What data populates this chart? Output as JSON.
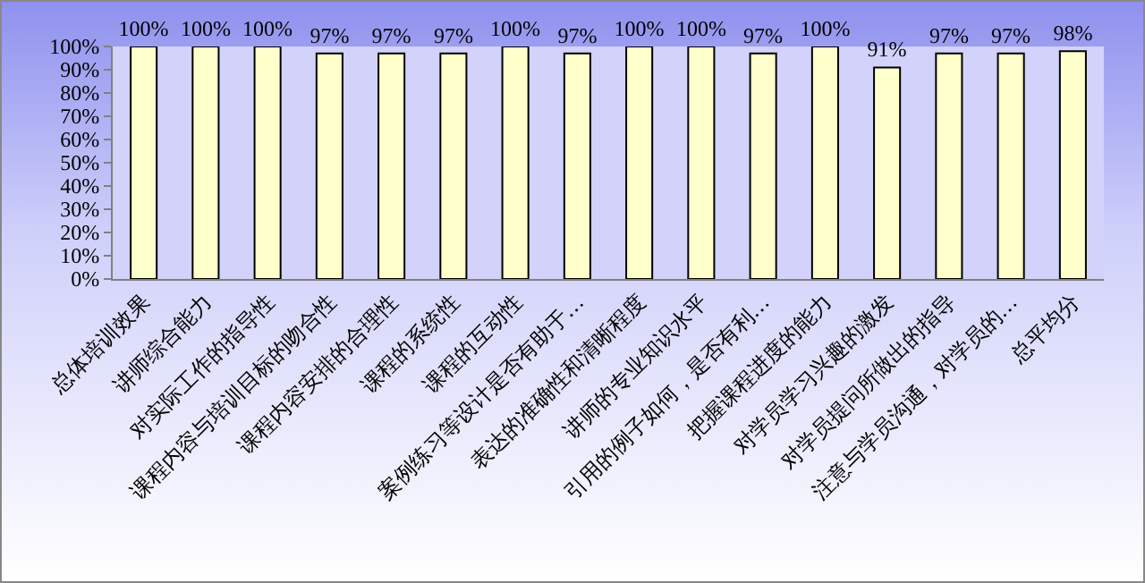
{
  "chart_data": {
    "type": "bar",
    "categories": [
      "总体培训效果",
      "讲师综合能力",
      "对实际工作的指导性",
      "课程内容与培训目标的吻合性",
      "课程内容安排的合理性",
      "课程的系统性",
      "课程的互动性",
      "案例练习等设计是否有助于…",
      "表达的准确性和清晰程度",
      "讲师的专业知识水平",
      "引用的例子如何，是否有利…",
      "把握课程进度的能力",
      "对学员学习兴趣的激发",
      "对学员提问所做出的指导",
      "注意与学员沟通，对学员的…",
      "总平均分"
    ],
    "values": [
      100,
      100,
      100,
      97,
      97,
      97,
      100,
      97,
      100,
      100,
      97,
      100,
      91,
      97,
      97,
      98
    ],
    "value_labels": [
      "100%",
      "100%",
      "100%",
      "97%",
      "97%",
      "97%",
      "100%",
      "97%",
      "100%",
      "100%",
      "97%",
      "100%",
      "91%",
      "97%",
      "97%",
      "98%"
    ],
    "color": "#ffffcc",
    "ylim": [
      0,
      100
    ],
    "yticks": [
      {
        "value": 0,
        "label": "0%"
      },
      {
        "value": 10,
        "label": "10%"
      },
      {
        "value": 20,
        "label": "20%"
      },
      {
        "value": 30,
        "label": "30%"
      },
      {
        "value": 40,
        "label": "40%"
      },
      {
        "value": 50,
        "label": "50%"
      },
      {
        "value": 60,
        "label": "60%"
      },
      {
        "value": 70,
        "label": "70%"
      },
      {
        "value": 80,
        "label": "80%"
      },
      {
        "value": 90,
        "label": "90%"
      },
      {
        "value": 100,
        "label": "100%"
      }
    ],
    "grid": false
  }
}
